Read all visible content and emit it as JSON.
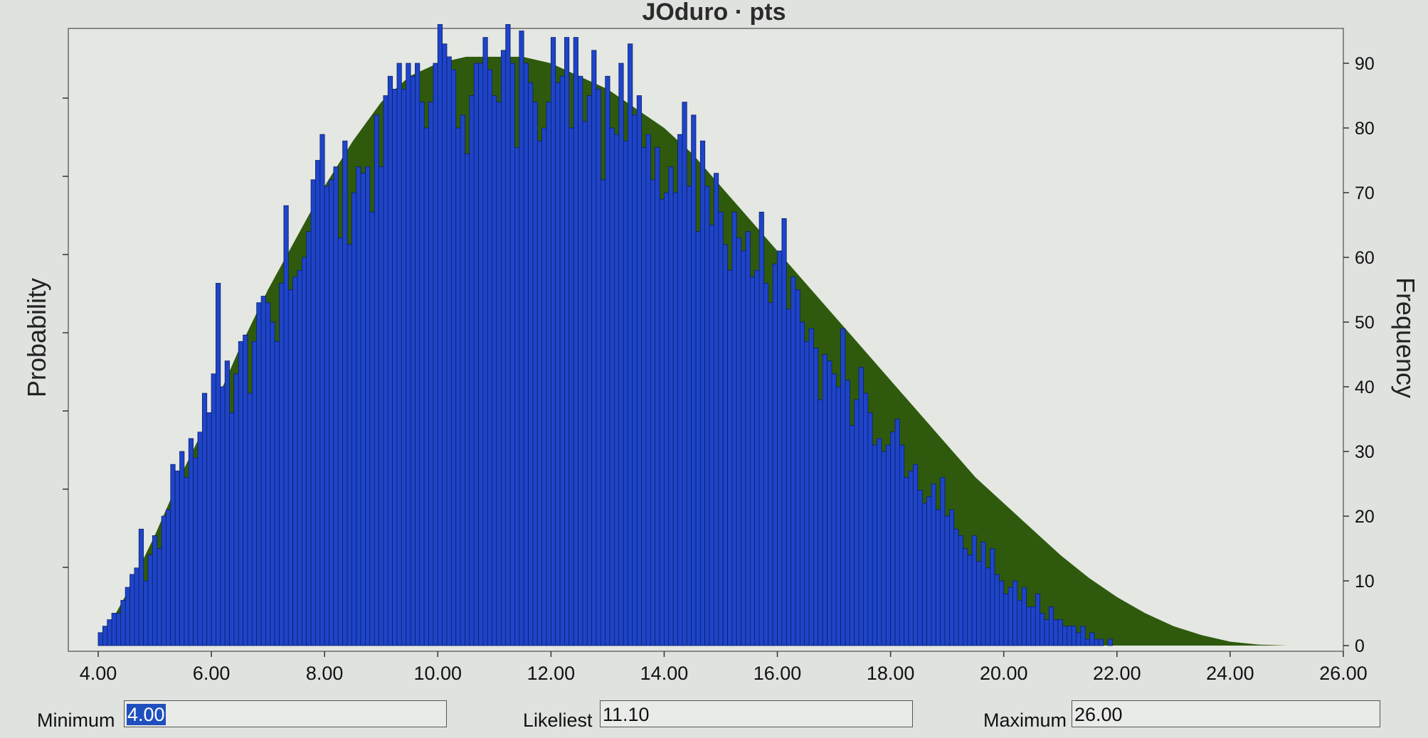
{
  "window": {
    "title": "JOduro · pts"
  },
  "chart_data": {
    "type": "bar",
    "title": "JOduro · pts",
    "ylabel_left": "Probability",
    "ylabel_right": "Frequency",
    "x_ticks": [
      "4.00",
      "6.00",
      "8.00",
      "10.00",
      "12.00",
      "14.00",
      "16.00",
      "18.00",
      "20.00",
      "22.00",
      "24.00",
      "26.00"
    ],
    "xlim": [
      4.0,
      26.0
    ],
    "y_ticks": [
      0,
      10,
      20,
      30,
      40,
      50,
      60,
      70,
      80,
      90
    ],
    "ylim": [
      0,
      96
    ],
    "bin_width": 0.08,
    "series": [
      {
        "type": "area",
        "color": "#2f5a0d",
        "x": [
          4.0,
          4.5,
          5.0,
          5.5,
          6.0,
          6.5,
          7.0,
          7.5,
          8.0,
          8.5,
          9.0,
          9.5,
          10.0,
          10.5,
          11.0,
          11.5,
          12.0,
          12.5,
          13.0,
          13.5,
          14.0,
          14.5,
          15.0,
          15.5,
          16.0,
          16.5,
          17.0,
          17.5,
          18.0,
          18.5,
          19.0,
          19.5,
          20.0,
          20.5,
          21.0,
          21.5,
          22.0,
          22.5,
          23.0,
          23.5,
          24.0,
          24.5,
          25.0,
          25.5,
          26.0
        ],
        "values": [
          0,
          8,
          17,
          27,
          36,
          46,
          55,
          63,
          71,
          78,
          84,
          88,
          90,
          91,
          91,
          91,
          90,
          88,
          86,
          83,
          80,
          76,
          71,
          66,
          61,
          56,
          51,
          46,
          41,
          36,
          31,
          26,
          22,
          18,
          14,
          10.5,
          7.5,
          5,
          3,
          1.6,
          0.6,
          0.15,
          0,
          0,
          0
        ]
      },
      {
        "type": "bar",
        "color": "#1e44c8",
        "values": [
          2,
          3,
          4,
          5,
          5,
          7,
          9,
          11,
          12,
          18,
          10,
          14,
          17,
          15,
          20,
          21,
          28,
          27,
          30,
          26,
          32,
          29,
          33,
          39,
          36,
          42,
          56,
          40,
          44,
          36,
          42,
          47,
          48,
          39,
          47,
          53,
          54,
          53,
          50,
          47,
          56,
          68,
          55,
          57,
          58,
          60,
          64,
          72,
          75,
          79,
          71,
          72,
          74,
          63,
          78,
          62,
          70,
          74,
          73,
          74,
          67,
          82,
          74,
          85,
          88,
          86,
          90,
          86,
          90,
          88,
          90,
          84,
          80,
          84,
          90,
          96,
          93,
          91,
          89,
          80,
          82,
          76,
          85,
          90,
          90,
          94,
          89,
          85,
          84,
          92,
          96,
          90,
          77,
          95,
          90,
          87,
          84,
          78,
          80,
          84,
          94,
          87,
          88,
          94,
          80,
          94,
          88,
          81,
          85,
          92,
          86,
          72,
          88,
          80,
          79,
          90,
          78,
          93,
          82,
          85,
          77,
          79,
          72,
          77,
          69,
          70,
          74,
          70,
          79,
          84,
          71,
          82,
          64,
          78,
          71,
          65,
          73,
          67,
          62,
          58,
          67,
          63,
          61,
          64,
          57,
          58,
          67,
          56,
          53,
          59,
          61,
          66,
          52,
          57,
          55,
          50,
          47,
          49,
          46,
          38,
          45,
          44,
          42,
          40,
          49,
          41,
          34,
          38,
          43,
          39,
          36,
          31,
          32,
          30,
          31,
          33,
          35,
          31,
          26,
          27,
          28,
          24,
          22,
          23,
          25,
          21,
          26,
          20,
          21,
          18,
          17,
          15,
          14,
          17,
          13,
          16,
          12,
          15,
          11,
          10,
          8,
          9,
          10,
          7,
          9,
          6,
          6,
          8,
          5,
          4,
          6,
          4,
          4,
          3,
          3,
          3,
          2,
          3,
          1,
          2,
          1,
          1,
          0,
          1,
          0
        ]
      }
    ]
  },
  "inputs": {
    "minimum_label": "Minimum",
    "minimum_value": "4.00",
    "likeliest_label": "Likeliest",
    "likeliest_value": "11.10",
    "maximum_label": "Maximum",
    "maximum_value": "26.00"
  }
}
